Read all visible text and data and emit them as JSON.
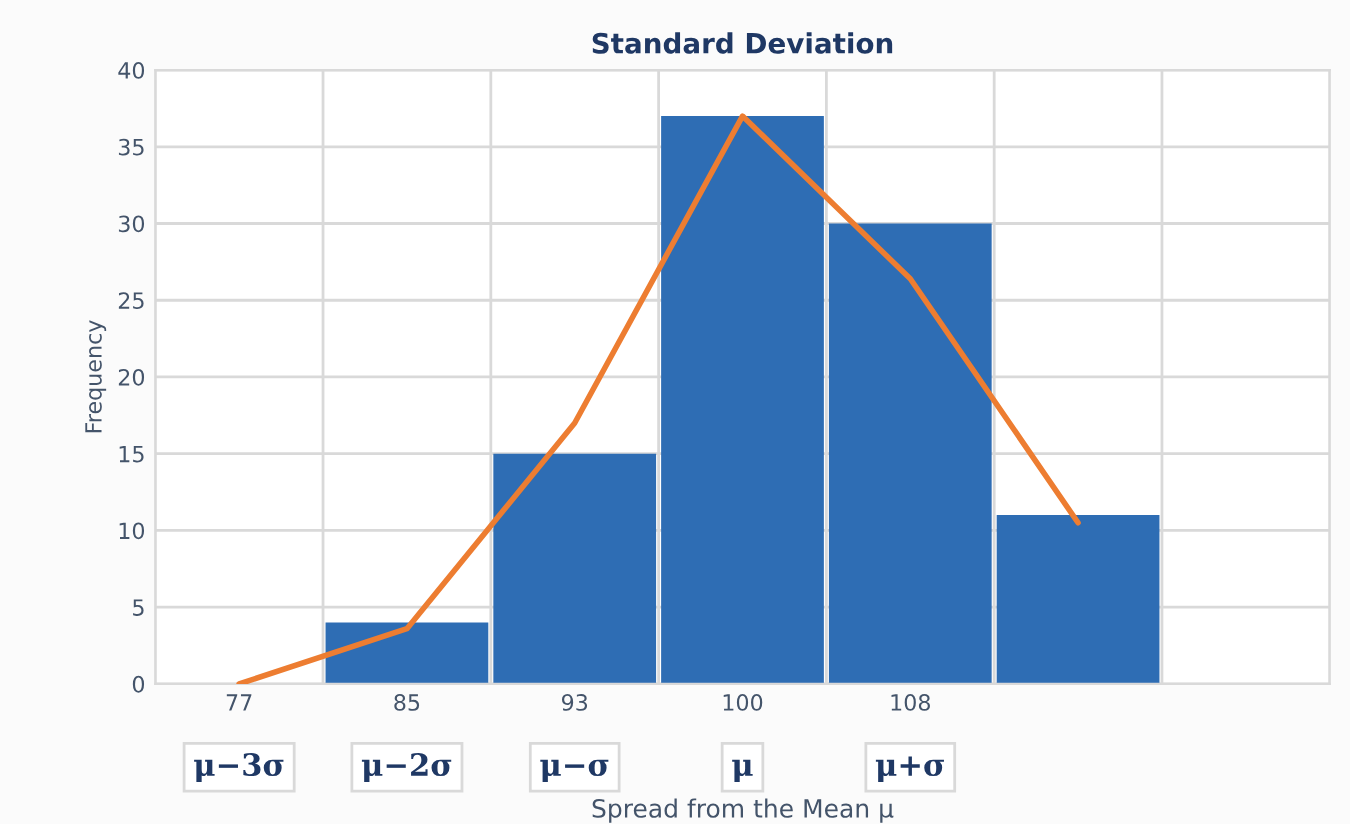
{
  "chart_data": {
    "type": "bar",
    "title": "Standard Deviation",
    "xlabel": "Spread from the Mean μ",
    "ylabel": "Frequency",
    "categories": [
      "77",
      "85",
      "93",
      "100",
      "108",
      null,
      null
    ],
    "series": [
      {
        "color": "#2e6db4",
        "values": [
          0,
          4,
          15,
          37,
          30,
          11,
          null
        ]
      },
      {
        "type": "line",
        "color": "#ed7d31",
        "values": [
          0,
          3.6,
          17,
          37,
          26.4,
          10.5,
          null
        ]
      }
    ],
    "ylim": [
      0,
      40
    ],
    "yticks": [
      0,
      5,
      10,
      15,
      20,
      25,
      30,
      35,
      40
    ],
    "grid": true,
    "legend": false,
    "annotations": [
      "μ−3σ",
      "μ−2σ",
      "μ−σ",
      "μ",
      "μ+σ"
    ]
  }
}
